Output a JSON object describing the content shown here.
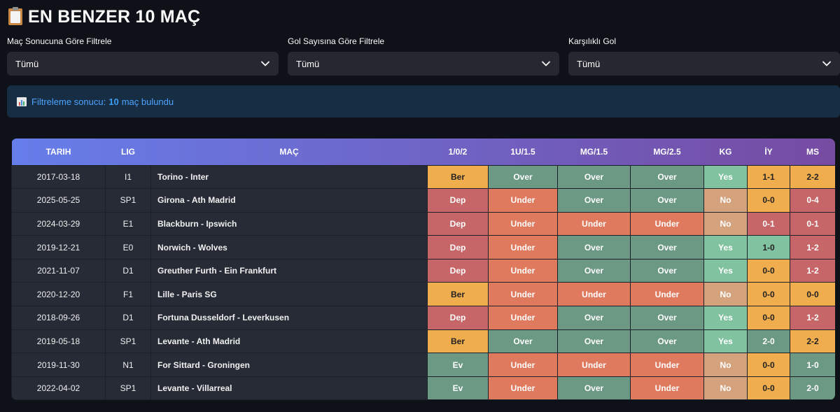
{
  "header": {
    "icon": "clipboard-icon",
    "title": "EN BENZER 10 MAÇ"
  },
  "filters": [
    {
      "label": "Maç Sonucuna Göre Filtrele",
      "value": "Tümü"
    },
    {
      "label": "Gol Sayısına Göre Filtrele",
      "value": "Tümü"
    },
    {
      "label": "Karşılıklı Gol",
      "value": "Tümü"
    }
  ],
  "info": {
    "prefix": "Filtreleme sonucu:",
    "count": "10",
    "suffix": "maç bulundu"
  },
  "table": {
    "columns": [
      "TARIH",
      "LIG",
      "MAÇ",
      "1/0/2",
      "1U/1.5",
      "MG/1.5",
      "MG/2.5",
      "KG",
      "İY",
      "MS"
    ],
    "rows": [
      {
        "date": "2017-03-18",
        "league": "I1",
        "match": "Torino - Inter",
        "r102": "Ber",
        "u15": "Over",
        "mg15": "Over",
        "mg25": "Over",
        "kg": "Yes",
        "iy": "1-1",
        "ms": "2-2",
        "c102": "c-ber",
        "cu15": "c-over",
        "cmg15": "c-over",
        "cmg25": "c-over",
        "ckg": "c-yes",
        "ciy": "c-iy-draw",
        "cms": "c-draw"
      },
      {
        "date": "2025-05-25",
        "league": "SP1",
        "match": "Girona - Ath Madrid",
        "r102": "Dep",
        "u15": "Under",
        "mg15": "Over",
        "mg25": "Over",
        "kg": "No",
        "iy": "0-0",
        "ms": "0-4",
        "c102": "c-dep",
        "cu15": "c-under",
        "cmg15": "c-over",
        "cmg25": "c-over",
        "ckg": "c-no",
        "ciy": "c-iy-draw",
        "cms": "c-away"
      },
      {
        "date": "2024-03-29",
        "league": "E1",
        "match": "Blackburn - Ipswich",
        "r102": "Dep",
        "u15": "Under",
        "mg15": "Under",
        "mg25": "Under",
        "kg": "No",
        "iy": "0-1",
        "ms": "0-1",
        "c102": "c-dep",
        "cu15": "c-under",
        "cmg15": "c-under",
        "cmg25": "c-under",
        "ckg": "c-no",
        "ciy": "c-away",
        "cms": "c-away"
      },
      {
        "date": "2019-12-21",
        "league": "E0",
        "match": "Norwich - Wolves",
        "r102": "Dep",
        "u15": "Under",
        "mg15": "Over",
        "mg25": "Over",
        "kg": "Yes",
        "iy": "1-0",
        "ms": "1-2",
        "c102": "c-dep",
        "cu15": "c-under",
        "cmg15": "c-over",
        "cmg25": "c-over",
        "ckg": "c-yes",
        "ciy": "c-home",
        "cms": "c-away"
      },
      {
        "date": "2021-11-07",
        "league": "D1",
        "match": "Greuther Furth - Ein Frankfurt",
        "r102": "Dep",
        "u15": "Under",
        "mg15": "Over",
        "mg25": "Over",
        "kg": "Yes",
        "iy": "0-0",
        "ms": "1-2",
        "c102": "c-dep",
        "cu15": "c-under",
        "cmg15": "c-over",
        "cmg25": "c-over",
        "ckg": "c-yes",
        "ciy": "c-iy-draw",
        "cms": "c-away"
      },
      {
        "date": "2020-12-20",
        "league": "F1",
        "match": "Lille - Paris SG",
        "r102": "Ber",
        "u15": "Under",
        "mg15": "Under",
        "mg25": "Under",
        "kg": "No",
        "iy": "0-0",
        "ms": "0-0",
        "c102": "c-ber",
        "cu15": "c-under",
        "cmg15": "c-under",
        "cmg25": "c-under",
        "ckg": "c-no",
        "ciy": "c-iy-draw",
        "cms": "c-draw"
      },
      {
        "date": "2018-09-26",
        "league": "D1",
        "match": "Fortuna Dusseldorf - Leverkusen",
        "r102": "Dep",
        "u15": "Under",
        "mg15": "Over",
        "mg25": "Over",
        "kg": "Yes",
        "iy": "0-0",
        "ms": "1-2",
        "c102": "c-dep",
        "cu15": "c-under",
        "cmg15": "c-over",
        "cmg25": "c-over",
        "ckg": "c-yes",
        "ciy": "c-iy-draw",
        "cms": "c-away"
      },
      {
        "date": "2019-05-18",
        "league": "SP1",
        "match": "Levante - Ath Madrid",
        "r102": "Ber",
        "u15": "Over",
        "mg15": "Over",
        "mg25": "Over",
        "kg": "Yes",
        "iy": "2-0",
        "ms": "2-2",
        "c102": "c-ber",
        "cu15": "c-over",
        "cmg15": "c-over",
        "cmg25": "c-over",
        "ckg": "c-yes",
        "ciy": "c-ms-home",
        "cms": "c-draw"
      },
      {
        "date": "2019-11-30",
        "league": "N1",
        "match": "For Sittard - Groningen",
        "r102": "Ev",
        "u15": "Under",
        "mg15": "Under",
        "mg25": "Under",
        "kg": "No",
        "iy": "0-0",
        "ms": "1-0",
        "c102": "c-ev",
        "cu15": "c-under",
        "cmg15": "c-under",
        "cmg25": "c-under",
        "ckg": "c-no",
        "ciy": "c-iy-draw",
        "cms": "c-ms-home"
      },
      {
        "date": "2022-04-02",
        "league": "SP1",
        "match": "Levante - Villarreal",
        "r102": "Ev",
        "u15": "Under",
        "mg15": "Over",
        "mg25": "Under",
        "kg": "No",
        "iy": "0-0",
        "ms": "2-0",
        "c102": "c-ev",
        "cu15": "c-under",
        "cmg15": "c-over",
        "cmg25": "c-under",
        "ckg": "c-no",
        "ciy": "c-iy-draw",
        "cms": "c-ms-home"
      }
    ]
  },
  "colors": {
    "background": "#0e1117",
    "header_gradient_start": "#667eea",
    "header_gradient_end": "#764ba2",
    "over": "#6c9983",
    "under": "#e07a5f",
    "draw": "#f0ad4e",
    "away": "#c66668",
    "yes": "#81c3a0",
    "no": "#d4a27c",
    "info_bg": "#172d43",
    "info_text": "#4da3ff"
  }
}
